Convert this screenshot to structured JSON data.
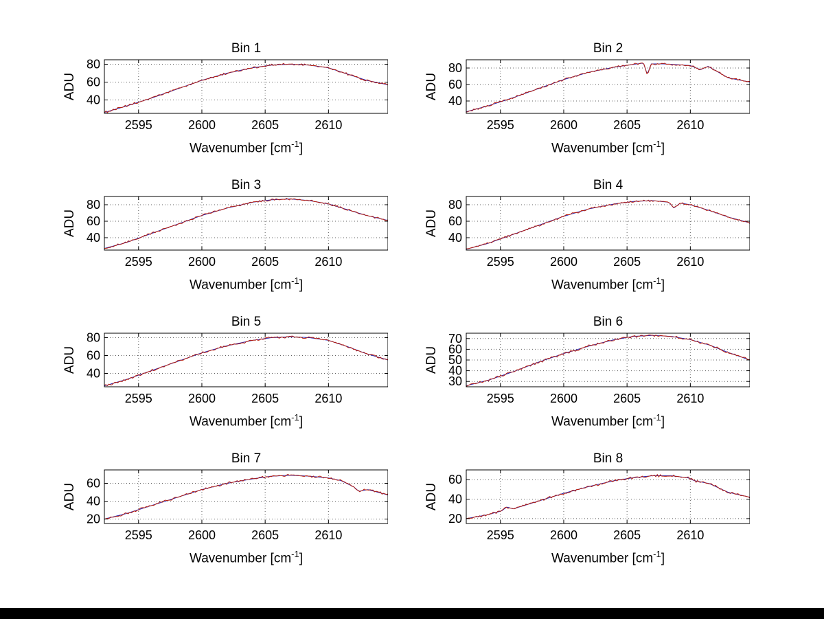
{
  "page": {
    "background": "#ffffff",
    "bottom_bar_color": "#000000"
  },
  "axes": {
    "ylabel": "ADU",
    "xlabel_pre": "Wavenumber [cm",
    "xlabel_sup": "-1",
    "xlabel_post": "]",
    "xlim": [
      2592.3,
      2614.7
    ],
    "xticks": [
      2595,
      2600,
      2605,
      2610
    ],
    "xtick_labels": [
      "2595",
      "2600",
      "2605",
      "2610"
    ],
    "grid": "dotted",
    "frame": true,
    "legend": "none"
  },
  "series_style": {
    "base_color": "#2222b0",
    "data_color": "#b82010",
    "grid_color": "#606060",
    "axis_color": "#000000",
    "noise_amp": 1.4
  },
  "chart_data": [
    {
      "type": "line",
      "title": "Bin 1",
      "ylabel": "ADU",
      "ylim": [
        25,
        85
      ],
      "yticks": [
        40,
        60,
        80
      ],
      "ytick_labels": [
        "40",
        "60",
        "80"
      ],
      "x": [
        2592.3,
        2594,
        2596,
        2598,
        2600,
        2602,
        2604,
        2605.5,
        2607,
        2608.5,
        2610,
        2611.5,
        2613,
        2614.7
      ],
      "y": [
        26,
        33,
        42,
        52,
        62,
        70,
        76,
        79,
        80,
        79,
        76,
        69,
        62,
        57
      ]
    },
    {
      "type": "line",
      "title": "Bin 2",
      "ylabel": "ADU",
      "ylim": [
        25,
        90
      ],
      "yticks": [
        40,
        60,
        80
      ],
      "ytick_labels": [
        "40",
        "60",
        "80"
      ],
      "x": [
        2592.3,
        2594,
        2596,
        2598,
        2600,
        2602,
        2604,
        2605.3,
        2606.3,
        2606.6,
        2606.9,
        2607.8,
        2609,
        2610,
        2610.8,
        2611.4,
        2613,
        2614.7
      ],
      "y": [
        27,
        34,
        44,
        55,
        66,
        75,
        81,
        84,
        86,
        72,
        85,
        85,
        84,
        83,
        78,
        82,
        68,
        63
      ]
    },
    {
      "type": "line",
      "title": "Bin 3",
      "ylabel": "ADU",
      "ylim": [
        25,
        90
      ],
      "yticks": [
        40,
        60,
        80
      ],
      "ytick_labels": [
        "40",
        "60",
        "80"
      ],
      "x": [
        2592.3,
        2594,
        2596,
        2598,
        2600,
        2602,
        2604,
        2605.5,
        2607,
        2608.5,
        2610,
        2611.5,
        2613,
        2614.7
      ],
      "y": [
        27,
        34,
        45,
        56,
        67,
        76,
        83,
        86,
        87,
        85,
        81,
        74,
        67,
        61
      ]
    },
    {
      "type": "line",
      "title": "Bin 4",
      "ylabel": "ADU",
      "ylim": [
        25,
        90
      ],
      "yticks": [
        40,
        60,
        80
      ],
      "ytick_labels": [
        "40",
        "60",
        "80"
      ],
      "x": [
        2592.3,
        2594,
        2596,
        2598,
        2600,
        2602,
        2604,
        2605.5,
        2607,
        2608.3,
        2608.7,
        2609.2,
        2610,
        2611.5,
        2613,
        2614.7
      ],
      "y": [
        26,
        33,
        44,
        55,
        66,
        75,
        81,
        84,
        85,
        83,
        76,
        82,
        80,
        73,
        65,
        58
      ]
    },
    {
      "type": "line",
      "title": "Bin 5",
      "ylabel": "ADU",
      "ylim": [
        25,
        85
      ],
      "yticks": [
        40,
        60,
        80
      ],
      "ytick_labels": [
        "40",
        "60",
        "80"
      ],
      "x": [
        2592.3,
        2594,
        2596,
        2598,
        2600,
        2602,
        2604,
        2605.5,
        2607,
        2608.5,
        2610,
        2611.5,
        2613,
        2614.7
      ],
      "y": [
        26,
        33,
        43,
        53,
        63,
        71,
        77,
        80,
        81,
        80,
        77,
        70,
        62,
        55
      ]
    },
    {
      "type": "line",
      "title": "Bin 6",
      "ylabel": "ADU",
      "ylim": [
        25,
        75
      ],
      "yticks": [
        30,
        40,
        50,
        60,
        70
      ],
      "ytick_labels": [
        "30",
        "40",
        "50",
        "60",
        "70"
      ],
      "x": [
        2592.3,
        2594,
        2596,
        2598,
        2600,
        2602,
        2604,
        2605.5,
        2607,
        2608.5,
        2610,
        2611.5,
        2613,
        2614.7
      ],
      "y": [
        26,
        31,
        39,
        48,
        56,
        63,
        69,
        72,
        73,
        72,
        69,
        64,
        57,
        50
      ]
    },
    {
      "type": "line",
      "title": "Bin 7",
      "ylabel": "ADU",
      "ylim": [
        15,
        75
      ],
      "yticks": [
        20,
        40,
        60
      ],
      "ytick_labels": [
        "20",
        "40",
        "60"
      ],
      "x": [
        2592.3,
        2594,
        2596,
        2598,
        2600,
        2602,
        2604,
        2605.5,
        2607,
        2608.5,
        2610,
        2611,
        2612,
        2612.4,
        2613.1,
        2614.7
      ],
      "y": [
        20,
        26,
        35,
        44,
        53,
        60,
        65,
        68,
        69,
        68,
        66,
        63,
        56,
        51,
        53,
        47
      ]
    },
    {
      "type": "line",
      "title": "Bin 8",
      "ylabel": "ADU",
      "ylim": [
        15,
        70
      ],
      "yticks": [
        20,
        40,
        60
      ],
      "ytick_labels": [
        "20",
        "40",
        "60"
      ],
      "x": [
        2592.3,
        2594,
        2595.1,
        2595.5,
        2596,
        2598,
        2600,
        2602,
        2604,
        2605.5,
        2607,
        2608.5,
        2609.8,
        2610.3,
        2611.5,
        2613,
        2614.7
      ],
      "y": [
        20,
        24,
        28,
        32,
        30,
        38,
        46,
        53,
        59,
        62,
        64,
        64,
        62,
        59,
        56,
        47,
        42
      ]
    }
  ]
}
